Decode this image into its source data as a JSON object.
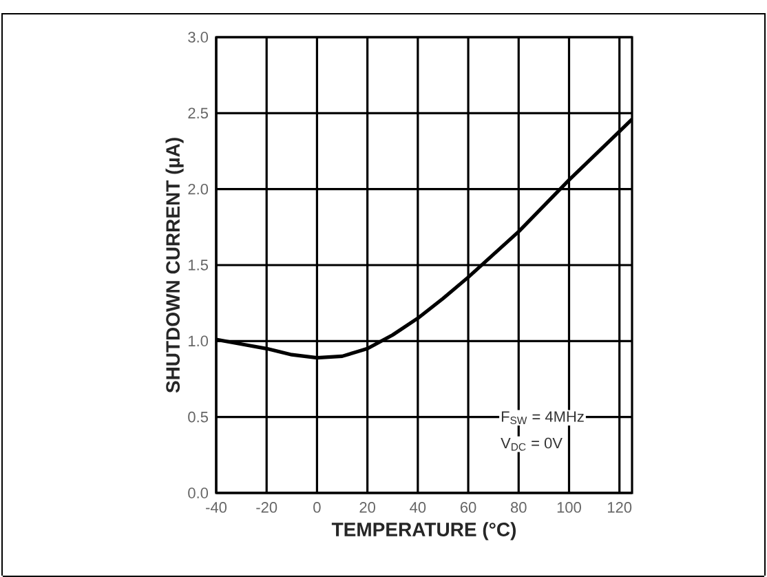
{
  "chart_data": {
    "type": "line",
    "xlabel": "TEMPERATURE (°C)",
    "ylabel": "SHUTDOWN CURRENT (µA)",
    "x": [
      -40,
      -30,
      -20,
      -10,
      0,
      10,
      20,
      30,
      40,
      50,
      60,
      70,
      80,
      90,
      100,
      110,
      120,
      125
    ],
    "series": [
      {
        "color": "#000000",
        "values": [
          1.01,
          0.98,
          0.95,
          0.91,
          0.89,
          0.9,
          0.95,
          1.04,
          1.15,
          1.28,
          1.42,
          1.57,
          1.72,
          1.89,
          2.06,
          2.22,
          2.38,
          2.46
        ]
      }
    ],
    "xlim": [
      -40,
      125
    ],
    "ylim": [
      0,
      3
    ],
    "xticks": [
      -40,
      -20,
      0,
      20,
      40,
      60,
      80,
      100,
      120
    ],
    "yticks": [
      {
        "value": 0,
        "label": "0.0"
      },
      0.5,
      {
        "value": 1,
        "label": "1.0"
      },
      1.5,
      {
        "value": 2,
        "label": "2.0"
      },
      2.5,
      {
        "value": 3,
        "label": "3.0"
      }
    ],
    "grid": true,
    "line_style": "solid",
    "annotations": [
      "F$_{SW}$ = 4MHz",
      "V$_{DC}$ = 0V"
    ]
  }
}
